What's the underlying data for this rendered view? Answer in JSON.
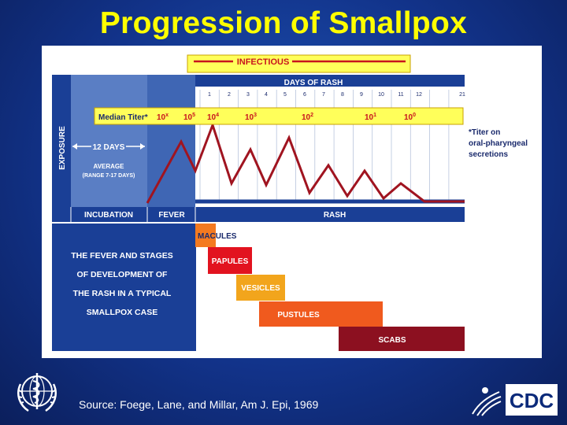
{
  "title": "Progression of Smallpox",
  "infectious_label": "INFECTIOUS",
  "days_of_rash_label": "DAYS OF RASH",
  "day_numbers": [
    "1",
    "2",
    "3",
    "4",
    "5",
    "6",
    "7",
    "8",
    "9",
    "10",
    "11",
    "12",
    "21"
  ],
  "exposure_label": "EXPOSURE",
  "twelve_days": "12 DAYS",
  "average_label": "AVERAGE",
  "range_label": "(RANGE 7-17 DAYS)",
  "titer": {
    "label": "Median Titer*",
    "values": [
      {
        "base": "10",
        "exp": "x"
      },
      {
        "base": "10",
        "exp": "5"
      },
      {
        "base": "10",
        "exp": "4"
      },
      {
        "base": "10",
        "exp": "3"
      },
      {
        "base": "10",
        "exp": "2"
      },
      {
        "base": "10",
        "exp": "1"
      },
      {
        "base": "10",
        "exp": "0"
      }
    ]
  },
  "titer_note": [
    "*Titer on",
    "oral-pharyngeal",
    "secretions"
  ],
  "phases": {
    "incubation": "INCUBATION",
    "fever": "FEVER",
    "rash": "RASH"
  },
  "stages_title": [
    "THE FEVER AND STAGES",
    "OF DEVELOPMENT OF",
    "THE RASH IN A TYPICAL",
    "SMALLPOX CASE"
  ],
  "stages": {
    "macules": "MACULES",
    "papules": "PAPULES",
    "vesicles": "VESICLES",
    "pustules": "PUSTULES",
    "scabs": "SCABS"
  },
  "source": "Source:  Foege, Lane, and Millar, Am J. Epi, 1969",
  "cdc_label": "CDC",
  "colors": {
    "background": "#12338a",
    "title": "#ffff00",
    "chart_blue": "#1a3f96",
    "incubation_blue": "#5a7ec4",
    "fever_blue": "#3f66b4",
    "curve": "#a01420",
    "macules": "#f47a20",
    "papules": "#e2131f",
    "vesicles": "#f2a51c",
    "pustules": "#f05a1e",
    "scabs": "#8c1020"
  }
}
